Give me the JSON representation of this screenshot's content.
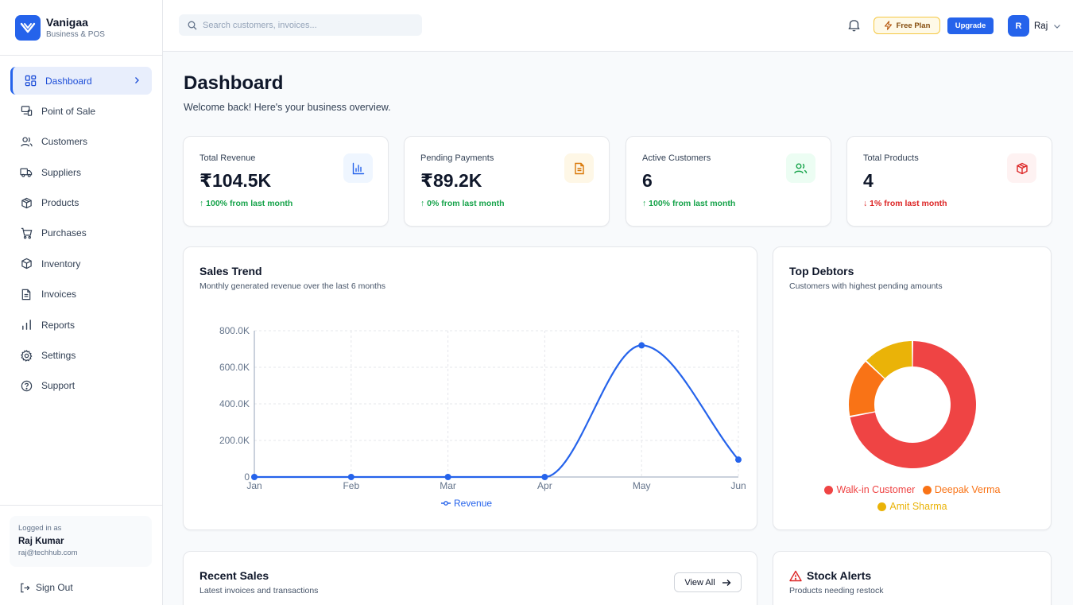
{
  "brand": {
    "name": "Vanigaa",
    "subtitle": "Business & POS"
  },
  "sidebar": {
    "items": [
      {
        "label": "Dashboard",
        "icon": "dashboard-icon",
        "active": true
      },
      {
        "label": "Point of Sale",
        "icon": "pos-icon"
      },
      {
        "label": "Customers",
        "icon": "users-icon"
      },
      {
        "label": "Suppliers",
        "icon": "truck-icon"
      },
      {
        "label": "Products",
        "icon": "package-icon"
      },
      {
        "label": "Purchases",
        "icon": "cart-icon"
      },
      {
        "label": "Inventory",
        "icon": "box-icon"
      },
      {
        "label": "Invoices",
        "icon": "file-icon"
      },
      {
        "label": "Reports",
        "icon": "bar-chart-icon"
      },
      {
        "label": "Settings",
        "icon": "gear-icon"
      },
      {
        "label": "Support",
        "icon": "help-icon"
      }
    ],
    "logged_in_label": "Logged in as",
    "user_name": "Raj Kumar",
    "user_email": "raj@techhub.com",
    "sign_out": "Sign Out"
  },
  "topbar": {
    "search_placeholder": "Search customers, invoices...",
    "plan_label": "Free Plan",
    "upgrade_label": "Upgrade",
    "avatar_initial": "R",
    "user_short": "Raj"
  },
  "page": {
    "title": "Dashboard",
    "subtitle": "Welcome back! Here's your business overview."
  },
  "stats": [
    {
      "label": "Total Revenue",
      "value": "₹104.5K",
      "change": "↑ 100% from last month",
      "trend": "up",
      "icon": "bar-chart-icon",
      "icon_color": "#2563eb",
      "icon_bg": "#eff6ff"
    },
    {
      "label": "Pending Payments",
      "value": "₹89.2K",
      "change": "↑ 0% from last month",
      "trend": "up",
      "icon": "file-icon",
      "icon_color": "#d97706",
      "icon_bg": "#fef7e6"
    },
    {
      "label": "Active Customers",
      "value": "6",
      "change": "↑ 100% from last month",
      "trend": "up",
      "icon": "users-icon",
      "icon_color": "#16a34a",
      "icon_bg": "#ecfdf3"
    },
    {
      "label": "Total Products",
      "value": "4",
      "change": "↓ 1% from last month",
      "trend": "down",
      "icon": "package-icon",
      "icon_color": "#dc2626",
      "icon_bg": "#fef2f2"
    }
  ],
  "sales_trend": {
    "title": "Sales Trend",
    "subtitle": "Monthly generated revenue over the last 6 months"
  },
  "top_debtors": {
    "title": "Top Debtors",
    "subtitle": "Customers with highest pending amounts"
  },
  "recent_sales": {
    "title": "Recent Sales",
    "subtitle": "Latest invoices and transactions",
    "view_all": "View All"
  },
  "stock_alerts": {
    "title": "Stock Alerts",
    "subtitle": "Products needing restock"
  },
  "chart_data": [
    {
      "type": "line",
      "x": [
        "Jan",
        "Feb",
        "Mar",
        "Apr",
        "May",
        "Jun"
      ],
      "series": [
        {
          "name": "Revenue",
          "values": [
            0,
            0,
            0,
            0,
            720000,
            95000
          ],
          "color": "#2563eb"
        }
      ],
      "yticks": [
        "0",
        "200.0K",
        "400.0K",
        "600.0K",
        "800.0K"
      ],
      "ylim": [
        0,
        800000
      ],
      "grid": true,
      "legend": "bottom"
    },
    {
      "type": "pie",
      "donut": true,
      "categories": [
        "Walk-in Customer",
        "Deepak Verma",
        "Amit Sharma"
      ],
      "values": [
        72,
        15,
        13
      ],
      "colors": [
        "#ef4444",
        "#f97316",
        "#eab308"
      ],
      "legend": "bottom"
    }
  ]
}
